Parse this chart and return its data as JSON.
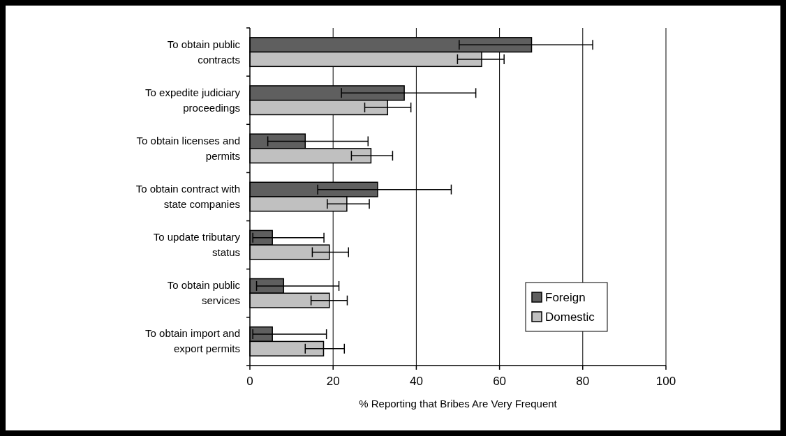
{
  "chart_data": {
    "type": "bar",
    "orientation": "horizontal",
    "xlabel": "% Reporting that Bribes Are Very Frequent",
    "categories": [
      "To obtain public contracts",
      "To expedite judiciary proceedings",
      "To obtain licenses and permits",
      "To obtain contract with state companies",
      "To update tributary status",
      "To obtain public services",
      "To obtain import and export permits"
    ],
    "series": [
      {
        "name": "Foreign",
        "color": "#5f5f5f",
        "values": [
          67.7,
          37.1,
          13.3,
          30.7,
          5.4,
          8.1,
          5.4
        ],
        "errors": [
          [
            50.3,
            82.4
          ],
          [
            22.0,
            54.3
          ],
          [
            4.3,
            28.4
          ],
          [
            16.3,
            48.4
          ],
          [
            0.7,
            17.8
          ],
          [
            1.6,
            21.4
          ],
          [
            0.7,
            18.4
          ]
        ]
      },
      {
        "name": "Domestic",
        "color": "#c0c0c0",
        "values": [
          55.7,
          33.1,
          29.1,
          23.3,
          19.1,
          19.1,
          17.7
        ],
        "errors": [
          [
            49.9,
            61.1
          ],
          [
            27.6,
            38.7
          ],
          [
            24.4,
            34.3
          ],
          [
            18.6,
            28.7
          ],
          [
            15.0,
            23.7
          ],
          [
            14.7,
            23.4
          ],
          [
            13.3,
            22.7
          ]
        ]
      }
    ],
    "xlim": [
      0,
      100
    ],
    "xticks": [
      0,
      20,
      40,
      60,
      80,
      100
    ],
    "grid": "x",
    "legend": "right"
  }
}
